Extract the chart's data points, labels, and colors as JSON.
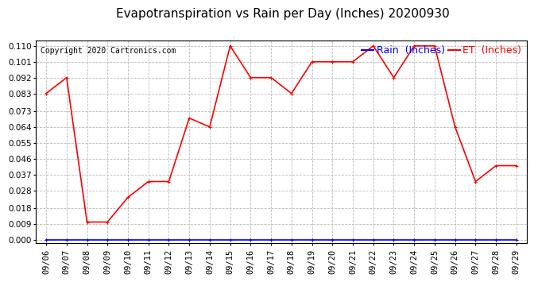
{
  "title": "Evapotranspiration vs Rain per Day (Inches) 20200930",
  "copyright": "Copyright 2020 Cartronics.com",
  "x_labels": [
    "09/06",
    "09/07",
    "09/08",
    "09/09",
    "09/10",
    "09/11",
    "09/12",
    "09/13",
    "09/14",
    "09/15",
    "09/16",
    "09/17",
    "09/18",
    "09/19",
    "09/20",
    "09/21",
    "09/22",
    "09/23",
    "09/24",
    "09/25",
    "09/26",
    "09/27",
    "09/28",
    "09/29"
  ],
  "et_values": [
    0.083,
    0.092,
    0.01,
    0.01,
    0.024,
    0.033,
    0.033,
    0.069,
    0.064,
    0.11,
    0.092,
    0.092,
    0.083,
    0.101,
    0.101,
    0.101,
    0.11,
    0.092,
    0.11,
    0.11,
    0.064,
    0.033,
    0.042,
    0.042
  ],
  "rain_values": [
    0.0,
    0.0,
    0.0,
    0.0,
    0.0,
    0.0,
    0.0,
    0.0,
    0.0,
    0.0,
    0.0,
    0.0,
    0.0,
    0.0,
    0.0,
    0.0,
    0.0,
    0.0,
    0.0,
    0.0,
    0.0,
    0.0,
    0.0,
    0.0
  ],
  "et_color": "red",
  "rain_color": "blue",
  "et_label": "ET  (Inches)",
  "rain_label": "Rain  (Inches)",
  "ylim_min": -0.002,
  "ylim_max": 0.113,
  "yticks": [
    0.0,
    0.009,
    0.018,
    0.028,
    0.037,
    0.046,
    0.055,
    0.064,
    0.073,
    0.083,
    0.092,
    0.101,
    0.11
  ],
  "background_color": "#ffffff",
  "grid_color": "#bbbbbb",
  "title_fontsize": 11,
  "copyright_fontsize": 7,
  "legend_fontsize": 9,
  "tick_fontsize": 7.5,
  "ytick_fontsize": 7.5
}
